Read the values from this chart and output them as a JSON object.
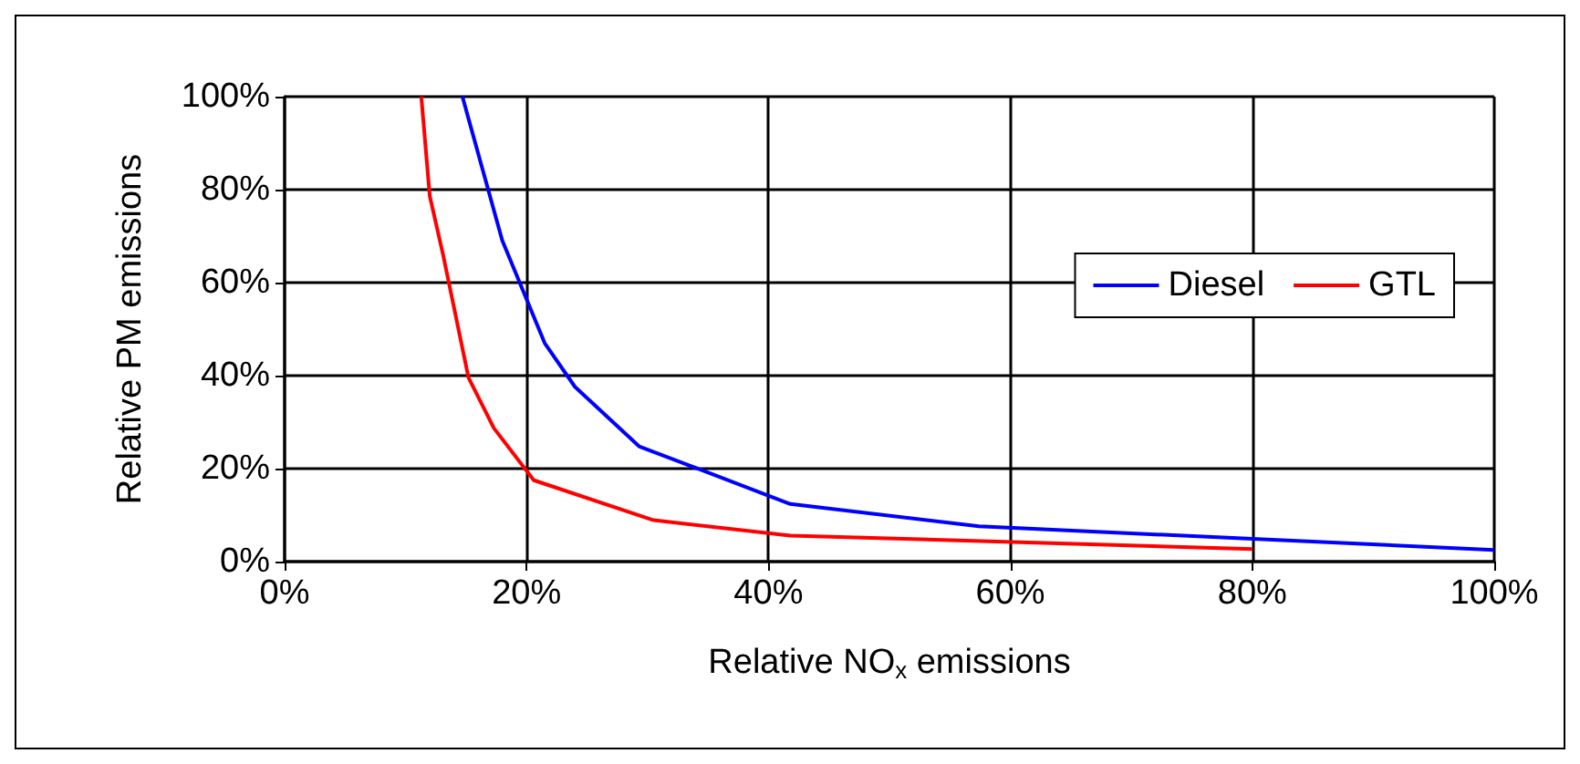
{
  "chart_data": {
    "type": "line",
    "xlabel": "Relative NO$_{x}$ emissions",
    "ylabel": "Relative PM emissions",
    "xlim": [
      0,
      100
    ],
    "ylim": [
      0,
      100
    ],
    "xticks": [
      {
        "value": 0,
        "label": "0%"
      },
      {
        "value": 20,
        "label": "20%"
      },
      {
        "value": 40,
        "label": "40%"
      },
      {
        "value": 60,
        "label": "60%"
      },
      {
        "value": 80,
        "label": "80%"
      },
      {
        "value": 100,
        "label": "100%"
      }
    ],
    "yticks": [
      {
        "value": 0,
        "label": "0%"
      },
      {
        "value": 20,
        "label": "20%"
      },
      {
        "value": 40,
        "label": "40%"
      },
      {
        "value": 60,
        "label": "60%"
      },
      {
        "value": 80,
        "label": "80%"
      },
      {
        "value": 100,
        "label": "100%"
      }
    ],
    "grid": true,
    "legend": "right",
    "marker": "none",
    "line_style": "solid",
    "series": [
      {
        "name": "Diesel",
        "color": "#0000ff",
        "x": [
          14.7,
          18,
          21.5,
          24,
          29.3,
          41.8,
          57.4,
          80,
          100
        ],
        "values": [
          100,
          69,
          47,
          37.6,
          24.8,
          12.4,
          7.6,
          4.9,
          2.5
        ]
      },
      {
        "name": "GTL",
        "color": "#ff0000",
        "x": [
          11.3,
          12,
          13.1,
          15.2,
          17.3,
          20.6,
          30.5,
          41.8,
          80
        ],
        "values": [
          100,
          78.6,
          66,
          39.6,
          28.7,
          17.5,
          8.9,
          5.6,
          2.7
        ]
      }
    ]
  }
}
